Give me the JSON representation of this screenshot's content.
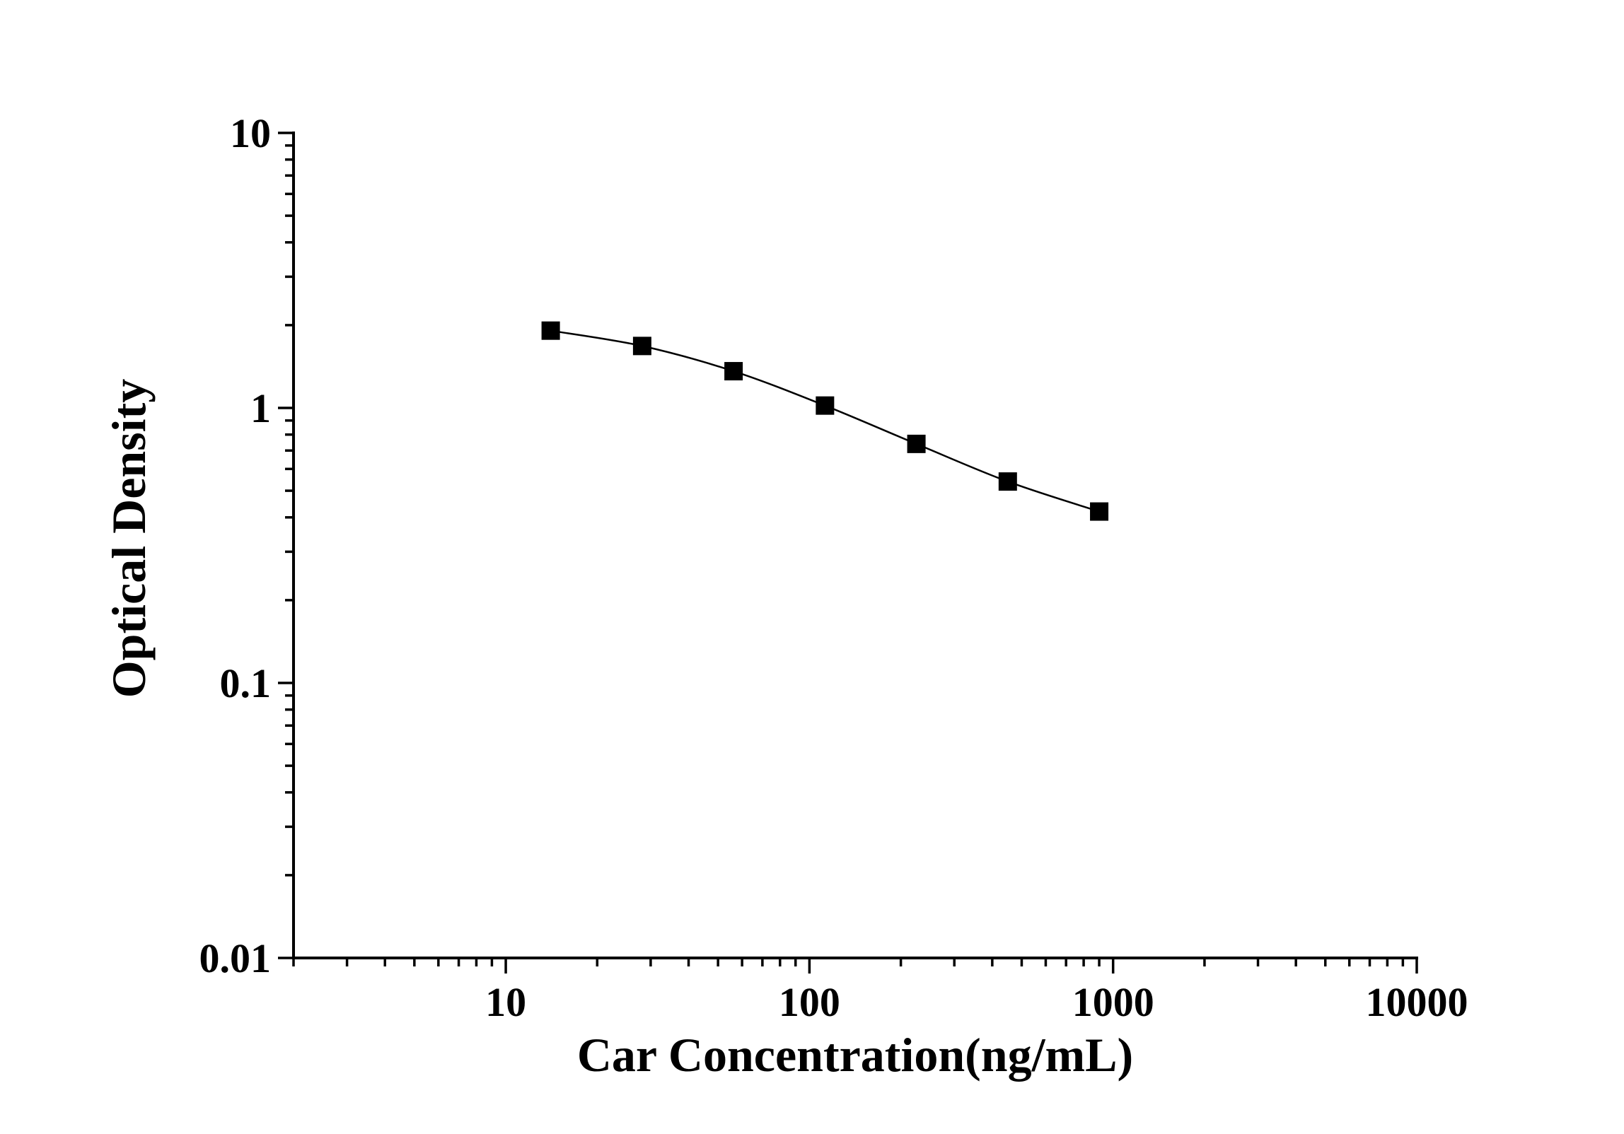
{
  "chart_data": {
    "type": "line",
    "xlabel": "Car Concentration(ng/mL)",
    "ylabel": "Optical Density",
    "x_scale": "log",
    "y_scale": "log",
    "xlim": [
      2,
      10000
    ],
    "ylim": [
      0.01,
      10
    ],
    "x_ticks": [
      {
        "value": 10,
        "label": "10"
      },
      {
        "value": 100,
        "label": "100"
      },
      {
        "value": 1000,
        "label": "1000"
      },
      {
        "value": 10000,
        "label": "10000"
      }
    ],
    "y_ticks": [
      {
        "value": 0.01,
        "label": "0.01"
      },
      {
        "value": 0.1,
        "label": "0.1"
      },
      {
        "value": 1,
        "label": "1"
      },
      {
        "value": 10,
        "label": "10"
      }
    ],
    "grid": false,
    "legend": "none",
    "series": [
      {
        "marker": "square",
        "color": "#000000",
        "x": [
          14.06,
          28.13,
          56.25,
          112.5,
          225,
          450,
          900
        ],
        "y": [
          1.91,
          1.68,
          1.36,
          1.02,
          0.74,
          0.54,
          0.42
        ]
      }
    ]
  }
}
